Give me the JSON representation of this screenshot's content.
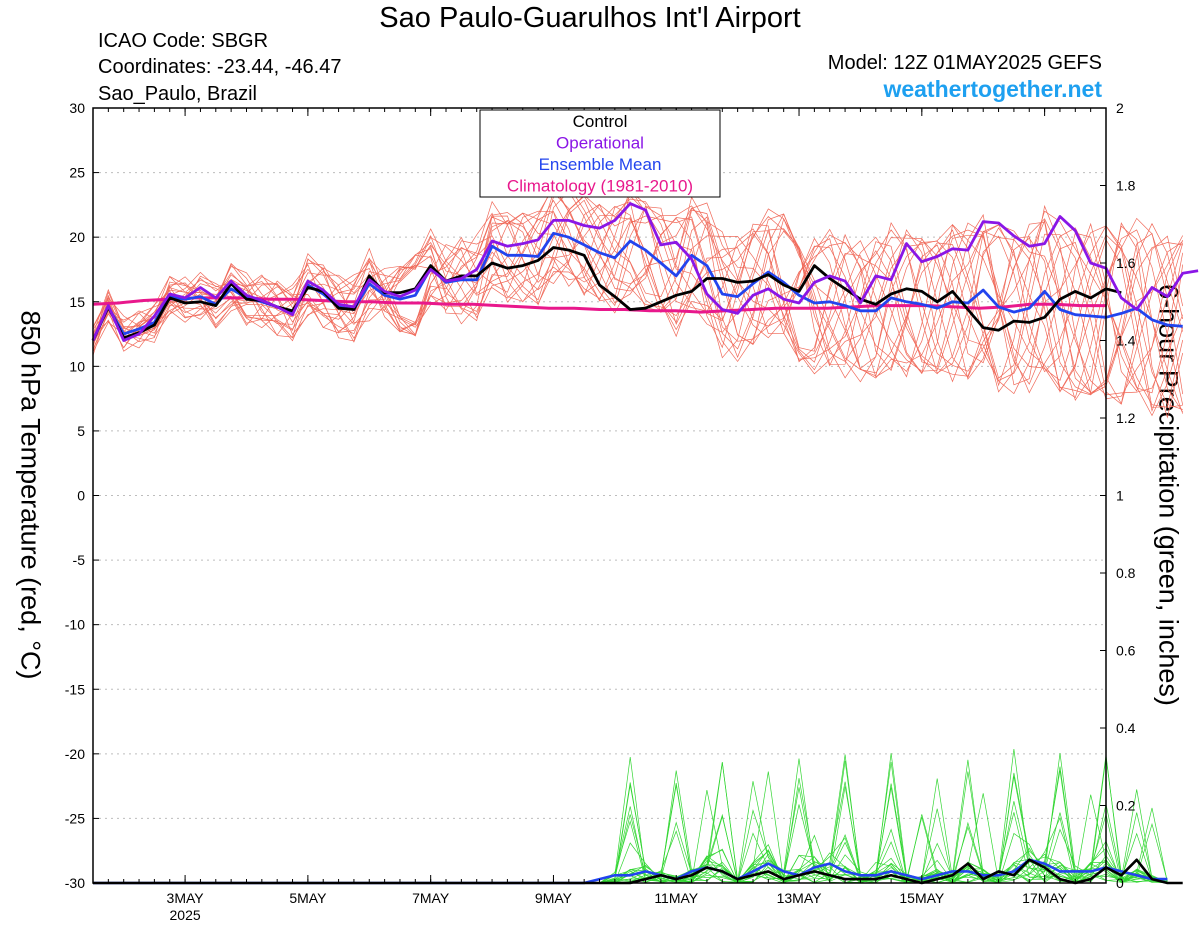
{
  "header": {
    "title": "Sao Paulo-Guarulhos Int'l Airport",
    "icao": "ICAO Code: SBGR",
    "coordinates": "Coordinates: -23.44, -46.47",
    "location": "Sao_Paulo, Brazil",
    "model": "Model: 12Z 01MAY2025 GEFS",
    "brand": "weathertogether.net"
  },
  "chart_data": {
    "type": "line",
    "title": "Sao Paulo-Guarulhos Int'l Airport",
    "ylabel": "850 hPa Temperature (red, °C)",
    "y2label": "6-hour Precipitation (green, inches)",
    "xlim": [
      0,
      16.5
    ],
    "x_start": "2025-05-01 12Z",
    "ylim": [
      -30,
      30
    ],
    "y2lim": [
      0,
      2
    ],
    "yticks": [
      -30,
      -25,
      -20,
      -15,
      -10,
      -5,
      0,
      5,
      10,
      15,
      20,
      25,
      30
    ],
    "y2ticks": [
      0,
      0.2,
      0.4,
      0.6,
      0.8,
      1,
      1.2,
      1.4,
      1.6,
      1.8,
      2
    ],
    "xticks": [
      {
        "pos": 1.5,
        "label": "3MAY",
        "sublabel": "2025"
      },
      {
        "pos": 3.5,
        "label": "5MAY"
      },
      {
        "pos": 5.5,
        "label": "7MAY"
      },
      {
        "pos": 7.5,
        "label": "9MAY"
      },
      {
        "pos": 9.5,
        "label": "11MAY"
      },
      {
        "pos": 11.5,
        "label": "13MAY"
      },
      {
        "pos": 13.5,
        "label": "15MAY"
      },
      {
        "pos": 15.5,
        "label": "17MAY"
      }
    ],
    "grid": "dotted horizontal",
    "legend": {
      "position": "top-center",
      "entries": [
        {
          "label": "Control",
          "color": "#000000"
        },
        {
          "label": "Operational",
          "color": "#8a16e6"
        },
        {
          "label": "Ensemble Mean",
          "color": "#2244ee"
        },
        {
          "label": "Climatology (1981-2010)",
          "color": "#e8188c"
        }
      ]
    },
    "colors": {
      "members_temp": "#f06a5a",
      "members_precip": "#33d633",
      "control": "#000000",
      "operational": "#8a16e6",
      "mean": "#2244ee",
      "climatology": "#e8188c"
    },
    "step_days": 0.25,
    "series": [
      {
        "name": "Control",
        "axis": "left",
        "values": [
          12.0,
          14.6,
          12.2,
          12.6,
          13.2,
          15.3,
          14.9,
          15.0,
          14.7,
          16.4,
          15.2,
          15.1,
          14.6,
          14.3,
          16.1,
          15.8,
          14.5,
          14.4,
          17.0,
          15.7,
          15.7,
          16.0,
          17.8,
          16.6,
          17.0,
          17.0,
          18.0,
          17.6,
          17.8,
          18.2,
          19.2,
          19.0,
          18.6,
          16.3,
          15.4,
          14.4,
          14.5,
          15.0,
          15.5,
          15.8,
          16.8,
          16.8,
          16.5,
          16.6,
          17.1,
          16.3,
          15.8,
          17.8,
          16.8,
          16.0,
          15.2,
          14.8,
          15.6,
          16.0,
          15.8,
          15.0,
          15.8,
          14.4,
          13.0,
          12.8,
          13.5,
          13.4,
          13.8,
          15.2,
          15.8,
          15.3,
          16.0,
          15.7
        ]
      },
      {
        "name": "Operational",
        "axis": "left",
        "values": [
          12.0,
          14.7,
          12.0,
          12.5,
          13.9,
          15.6,
          15.3,
          16.1,
          15.3,
          16.6,
          15.5,
          15.1,
          14.6,
          14.0,
          16.6,
          15.9,
          14.8,
          14.6,
          16.7,
          15.8,
          15.4,
          15.9,
          17.5,
          16.6,
          16.8,
          17.5,
          19.7,
          19.3,
          19.5,
          19.8,
          21.3,
          21.3,
          20.9,
          20.7,
          21.3,
          22.6,
          22.1,
          19.4,
          19.6,
          18.3,
          15.6,
          14.4,
          14.1,
          15.5,
          16.0,
          15.2,
          14.9,
          16.5,
          17.0,
          16.6,
          14.9,
          17.0,
          16.7,
          19.5,
          18.1,
          18.5,
          19.1,
          19.0,
          21.2,
          21.1,
          20.1,
          19.3,
          19.5,
          21.6,
          20.5,
          18.0,
          17.6,
          15.3,
          14.4,
          16.1,
          15.4,
          17.2,
          17.4
        ]
      },
      {
        "name": "Ensemble Mean",
        "axis": "left",
        "values": [
          12.0,
          14.6,
          12.5,
          12.9,
          13.4,
          15.4,
          15.2,
          15.4,
          14.8,
          16.0,
          15.3,
          15.0,
          14.6,
          14.1,
          16.3,
          15.6,
          14.6,
          14.4,
          16.4,
          15.5,
          15.2,
          15.5,
          17.6,
          16.5,
          16.7,
          16.7,
          19.3,
          18.6,
          18.6,
          18.5,
          20.3,
          20.0,
          19.4,
          18.8,
          18.4,
          19.7,
          19.0,
          18.0,
          17.0,
          18.6,
          17.8,
          15.6,
          15.4,
          16.4,
          17.3,
          16.5,
          15.5,
          14.9,
          15.0,
          14.7,
          14.3,
          14.3,
          15.3,
          15.0,
          14.8,
          14.5,
          15.0,
          14.9,
          15.9,
          14.6,
          14.2,
          14.5,
          15.8,
          14.4,
          14.0,
          13.9,
          13.8,
          14.1,
          14.5,
          13.6,
          13.2,
          13.1
        ]
      },
      {
        "name": "Climatology (1981-2010)",
        "axis": "left",
        "values": [
          14.8,
          14.9,
          15.1,
          15.2,
          15.3,
          15.3,
          15.3,
          15.2,
          15.2,
          15.1,
          15.0,
          15.0,
          14.9,
          14.9,
          14.8,
          14.8,
          14.7,
          14.6,
          14.5,
          14.5,
          14.4,
          14.4,
          14.3,
          14.3,
          14.2,
          14.3,
          14.4,
          14.5,
          14.5,
          14.5,
          14.6,
          14.7,
          14.7,
          14.7,
          14.6,
          14.5,
          14.6,
          14.8,
          14.8,
          14.7,
          14.7
        ]
      },
      {
        "name": "Control",
        "axis": "right",
        "values": [
          0,
          0,
          0,
          0,
          0,
          0,
          0,
          0,
          0,
          0,
          0,
          0,
          0,
          0,
          0,
          0,
          0,
          0,
          0,
          0,
          0,
          0,
          0,
          0,
          0,
          0,
          0,
          0,
          0,
          0,
          0,
          0,
          0,
          0,
          0,
          0,
          0.01,
          0.02,
          0.01,
          0.02,
          0.04,
          0.03,
          0.01,
          0.02,
          0.03,
          0.01,
          0.02,
          0.03,
          0.02,
          0.01,
          0.01,
          0.01,
          0.02,
          0.01,
          0,
          0.01,
          0.02,
          0.05,
          0.01,
          0.03,
          0.02,
          0.06,
          0.04,
          0.01,
          0,
          0.01,
          0.04,
          0.02,
          0.06,
          0.01,
          0,
          0
        ]
      },
      {
        "name": "Ensemble Mean",
        "axis": "right",
        "values": [
          0,
          0,
          0,
          0,
          0,
          0,
          0,
          0,
          0,
          0,
          0,
          0,
          0,
          0,
          0,
          0,
          0,
          0,
          0,
          0,
          0,
          0,
          0,
          0,
          0,
          0,
          0,
          0,
          0,
          0,
          0,
          0,
          0,
          0.01,
          0.02,
          0.02,
          0.03,
          0.02,
          0.01,
          0.03,
          0.04,
          0.03,
          0.01,
          0.03,
          0.05,
          0.03,
          0.02,
          0.04,
          0.05,
          0.03,
          0.02,
          0.02,
          0.03,
          0.02,
          0.01,
          0.02,
          0.03,
          0.03,
          0.02,
          0.02,
          0.03,
          0.06,
          0.05,
          0.03,
          0.03,
          0.03,
          0.04,
          0.03,
          0.02,
          0.01,
          0.01
        ]
      }
    ]
  }
}
